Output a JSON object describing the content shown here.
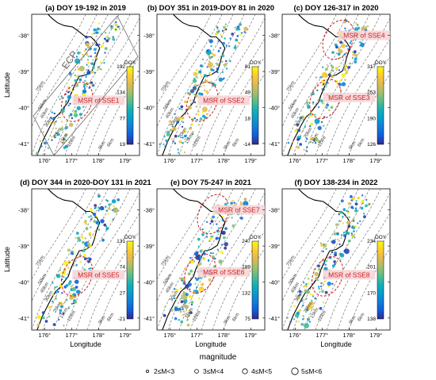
{
  "figure": {
    "ylabel": "Latitude",
    "xlabel": "Longitude",
    "legend_title": "magnitude",
    "legend_items": [
      "2≤M<3",
      "3≤M<4",
      "4≤M<5",
      "5≤M<6"
    ],
    "colorbar_title": "DOY",
    "contours": [
      "6km",
      "9km",
      "12km",
      "15km",
      "20km",
      "30km",
      "40km",
      "50km",
      "75km"
    ],
    "trough_label": "ECP",
    "colors": {
      "msr_label": "#d01c1c",
      "msr_bg": "#f6d3d6",
      "outline": "#000000",
      "contour": "#777777"
    },
    "colormap": "parula"
  },
  "chart_data": [
    {
      "type": "scatter",
      "title": "(a) DOY 19-192 in 2019",
      "xlabel": "Longitude",
      "ylabel": "Latitude",
      "x_ticks": [
        "176°",
        "177°",
        "178°",
        "179°"
      ],
      "y_ticks": [
        "-38°",
        "-39°",
        "-40°",
        "-41°"
      ],
      "xlim": [
        175.5,
        179.5
      ],
      "ylim": [
        -41.3,
        -37.3
      ],
      "colorbar": {
        "label": "DOY",
        "min": 19,
        "max": 192,
        "ticks": [
          192,
          134,
          77,
          19
        ]
      },
      "msr_labels": [
        "MSR of SSE1"
      ]
    },
    {
      "type": "scatter",
      "title": "(b) DOY 351 in 2019-DOY 81 in 2020",
      "xlabel": "Longitude",
      "ylabel": "Latitude",
      "x_ticks": [
        "176°",
        "177°",
        "178°",
        "179°"
      ],
      "y_ticks": [
        "-38°",
        "-39°",
        "-40°",
        "-41°"
      ],
      "xlim": [
        175.5,
        179.5
      ],
      "ylim": [
        -41.3,
        -37.3
      ],
      "colorbar": {
        "label": "DOY",
        "min": -14,
        "max": 81,
        "ticks": [
          81,
          49,
          18,
          -14
        ]
      },
      "msr_labels": [
        "MSR of SSE2"
      ]
    },
    {
      "type": "scatter",
      "title": "(c) DOY 126-317 in 2020",
      "xlabel": "Longitude",
      "ylabel": "Latitude",
      "x_ticks": [
        "176°",
        "177°",
        "178°",
        "179°"
      ],
      "y_ticks": [
        "-38°",
        "-39°",
        "-40°",
        "-41°"
      ],
      "xlim": [
        175.5,
        179.5
      ],
      "ylim": [
        -41.3,
        -37.3
      ],
      "colorbar": {
        "label": "DOY",
        "min": 126,
        "max": 317,
        "ticks": [
          317,
          253,
          190,
          126
        ]
      },
      "msr_labels": [
        "MSR of SSE4",
        "MSR of SSE3"
      ]
    },
    {
      "type": "scatter",
      "title": "(d) DOY 344 in 2020-DOY 131 in 2021",
      "xlabel": "Longitude",
      "ylabel": "Latitude",
      "x_ticks": [
        "176°",
        "177°",
        "178°",
        "179°"
      ],
      "y_ticks": [
        "-38°",
        "-39°",
        "-40°",
        "-41°"
      ],
      "xlim": [
        175.5,
        179.5
      ],
      "ylim": [
        -41.3,
        -37.3
      ],
      "colorbar": {
        "label": "DOY",
        "min": -21,
        "max": 131,
        "ticks": [
          131,
          74,
          27,
          -21
        ]
      },
      "msr_labels": [
        "MSR of SSE5"
      ]
    },
    {
      "type": "scatter",
      "title": "(e) DOY 75-247 in 2021",
      "xlabel": "Longitude",
      "ylabel": "Latitude",
      "x_ticks": [
        "176°",
        "177°",
        "178°",
        "179°"
      ],
      "y_ticks": [
        "-38°",
        "-39°",
        "-40°",
        "-41°"
      ],
      "xlim": [
        175.5,
        179.5
      ],
      "ylim": [
        -41.3,
        -37.3
      ],
      "colorbar": {
        "label": "DOY",
        "min": 75,
        "max": 247,
        "ticks": [
          247,
          189,
          132,
          75
        ]
      },
      "msr_labels": [
        "MSR of SSE7",
        "MSR of SSE6"
      ]
    },
    {
      "type": "scatter",
      "title": "(f) DOY 138-234 in 2022",
      "xlabel": "Longitude",
      "ylabel": "Latitude",
      "x_ticks": [
        "176°",
        "177°",
        "178°",
        "179°"
      ],
      "y_ticks": [
        "-38°",
        "-39°",
        "-40°",
        "-41°"
      ],
      "xlim": [
        175.5,
        179.5
      ],
      "ylim": [
        -41.3,
        -37.3
      ],
      "colorbar": {
        "label": "DOY",
        "min": 138,
        "max": 234,
        "ticks": [
          234,
          201,
          170,
          138
        ]
      },
      "msr_labels": [
        "MSR of SSE8"
      ]
    }
  ]
}
